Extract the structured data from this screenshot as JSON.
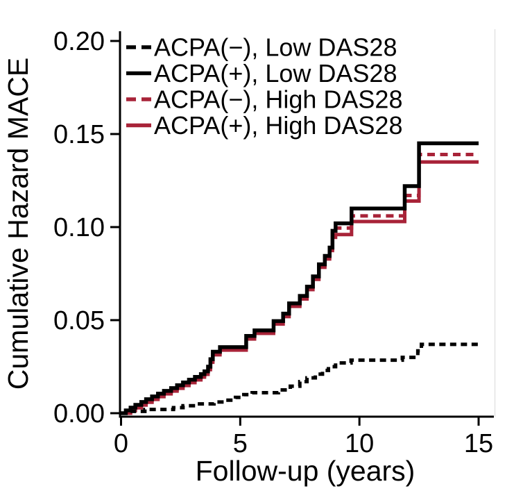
{
  "chart_data": {
    "type": "line",
    "subtype": "step-function-cumulative-hazard",
    "title": "",
    "xlabel": "Follow-up (years)",
    "ylabel": "Cumulative Hazard MACE",
    "xlim": [
      0,
      15
    ],
    "ylim": [
      0,
      0.2
    ],
    "xticks": [
      0,
      5,
      10,
      15
    ],
    "xtick_labels": [
      "0",
      "5",
      "10",
      "15"
    ],
    "yticks": [
      0,
      0.05,
      0.1,
      0.15,
      0.2
    ],
    "ytick_labels": [
      "0.00",
      "0.05",
      "0.10",
      "0.15",
      "0.20"
    ],
    "grid": false,
    "legend_position": "top-left-inside",
    "colors": {
      "black": "#000000",
      "red": "#A82338",
      "axis": "#000000",
      "panel_right_border": "#e3e3e3"
    },
    "series": [
      {
        "name": "ACPA(−), Low DAS28",
        "color": "#000000",
        "dash": "dashed",
        "final_value": 0.037,
        "points": [
          [
            0,
            0
          ],
          [
            0.4,
            0.001
          ],
          [
            1.0,
            0.002
          ],
          [
            2.2,
            0.003
          ],
          [
            2.6,
            0.004
          ],
          [
            3.2,
            0.005
          ],
          [
            3.9,
            0.006
          ],
          [
            4.4,
            0.007
          ],
          [
            4.8,
            0.0085
          ],
          [
            5.15,
            0.01
          ],
          [
            5.5,
            0.011
          ],
          [
            6.6,
            0.0125
          ],
          [
            7.1,
            0.0145
          ],
          [
            7.5,
            0.017
          ],
          [
            7.8,
            0.019
          ],
          [
            8.15,
            0.021
          ],
          [
            8.45,
            0.023
          ],
          [
            8.7,
            0.025
          ],
          [
            9.0,
            0.027
          ],
          [
            9.65,
            0.0285
          ],
          [
            11.8,
            0.03
          ],
          [
            12.45,
            0.0335
          ],
          [
            12.6,
            0.037
          ],
          [
            15,
            0.037
          ]
        ]
      },
      {
        "name": "ACPA(+), Low DAS28",
        "color": "#000000",
        "dash": "solid",
        "final_value": 0.145,
        "points": [
          [
            0,
            0
          ],
          [
            0.2,
            0.0015
          ],
          [
            0.4,
            0.003
          ],
          [
            0.6,
            0.0045
          ],
          [
            0.85,
            0.006
          ],
          [
            1.05,
            0.0075
          ],
          [
            1.3,
            0.009
          ],
          [
            1.55,
            0.0105
          ],
          [
            1.8,
            0.012
          ],
          [
            2.1,
            0.0135
          ],
          [
            2.35,
            0.015
          ],
          [
            2.6,
            0.0165
          ],
          [
            2.85,
            0.018
          ],
          [
            3.1,
            0.0195
          ],
          [
            3.35,
            0.021
          ],
          [
            3.5,
            0.0225
          ],
          [
            3.65,
            0.025
          ],
          [
            3.75,
            0.029
          ],
          [
            3.85,
            0.033
          ],
          [
            4.15,
            0.0355
          ],
          [
            5.25,
            0.0415
          ],
          [
            5.6,
            0.0445
          ],
          [
            6.4,
            0.0495
          ],
          [
            6.8,
            0.0535
          ],
          [
            7.05,
            0.059
          ],
          [
            7.5,
            0.063
          ],
          [
            7.8,
            0.068
          ],
          [
            8.05,
            0.0735
          ],
          [
            8.3,
            0.08
          ],
          [
            8.55,
            0.0845
          ],
          [
            8.75,
            0.089
          ],
          [
            8.87,
            0.098
          ],
          [
            9.0,
            0.102
          ],
          [
            9.67,
            0.11
          ],
          [
            11.9,
            0.122
          ],
          [
            12.5,
            0.145
          ],
          [
            15,
            0.145
          ]
        ]
      },
      {
        "name": "ACPA(−), High DAS28",
        "color": "#A82338",
        "dash": "dashed",
        "final_value": 0.139,
        "points": [
          [
            0,
            0
          ],
          [
            0.2,
            0.0007
          ],
          [
            0.4,
            0.0022
          ],
          [
            0.6,
            0.0037
          ],
          [
            0.85,
            0.0052
          ],
          [
            1.05,
            0.0067
          ],
          [
            1.3,
            0.0082
          ],
          [
            1.55,
            0.0097
          ],
          [
            1.8,
            0.0112
          ],
          [
            2.1,
            0.0127
          ],
          [
            2.35,
            0.0142
          ],
          [
            2.6,
            0.0157
          ],
          [
            2.85,
            0.0172
          ],
          [
            3.1,
            0.0187
          ],
          [
            3.35,
            0.0202
          ],
          [
            3.5,
            0.0217
          ],
          [
            3.65,
            0.0242
          ],
          [
            3.75,
            0.0282
          ],
          [
            3.85,
            0.0322
          ],
          [
            4.15,
            0.0347
          ],
          [
            5.25,
            0.0407
          ],
          [
            5.6,
            0.0437
          ],
          [
            6.4,
            0.0487
          ],
          [
            6.8,
            0.0527
          ],
          [
            7.05,
            0.0582
          ],
          [
            7.5,
            0.0622
          ],
          [
            7.8,
            0.0672
          ],
          [
            8.05,
            0.0727
          ],
          [
            8.3,
            0.0792
          ],
          [
            8.55,
            0.0837
          ],
          [
            8.75,
            0.0882
          ],
          [
            8.87,
            0.0965
          ],
          [
            9.0,
            0.0995
          ],
          [
            9.67,
            0.106
          ],
          [
            11.9,
            0.117
          ],
          [
            12.5,
            0.139
          ],
          [
            15,
            0.139
          ]
        ]
      },
      {
        "name": "ACPA(+), High DAS28",
        "color": "#A82338",
        "dash": "solid",
        "final_value": 0.135,
        "points": [
          [
            0,
            0
          ],
          [
            0.2,
            0.0
          ],
          [
            0.4,
            0.0014
          ],
          [
            0.6,
            0.0029
          ],
          [
            0.85,
            0.0044
          ],
          [
            1.05,
            0.0059
          ],
          [
            1.3,
            0.0074
          ],
          [
            1.55,
            0.0089
          ],
          [
            1.8,
            0.0104
          ],
          [
            2.1,
            0.0119
          ],
          [
            2.35,
            0.0134
          ],
          [
            2.6,
            0.0149
          ],
          [
            2.85,
            0.0164
          ],
          [
            3.1,
            0.0179
          ],
          [
            3.35,
            0.0194
          ],
          [
            3.5,
            0.0209
          ],
          [
            3.65,
            0.0234
          ],
          [
            3.75,
            0.0274
          ],
          [
            3.85,
            0.0314
          ],
          [
            4.15,
            0.0339
          ],
          [
            5.25,
            0.0399
          ],
          [
            5.6,
            0.0429
          ],
          [
            6.4,
            0.0479
          ],
          [
            6.8,
            0.0519
          ],
          [
            7.05,
            0.0574
          ],
          [
            7.5,
            0.0614
          ],
          [
            7.8,
            0.0664
          ],
          [
            8.05,
            0.0719
          ],
          [
            8.3,
            0.0784
          ],
          [
            8.55,
            0.0829
          ],
          [
            8.75,
            0.0874
          ],
          [
            8.87,
            0.0945
          ],
          [
            9.0,
            0.096
          ],
          [
            9.67,
            0.103
          ],
          [
            11.9,
            0.114
          ],
          [
            12.5,
            0.135
          ],
          [
            15,
            0.135
          ]
        ]
      }
    ]
  }
}
